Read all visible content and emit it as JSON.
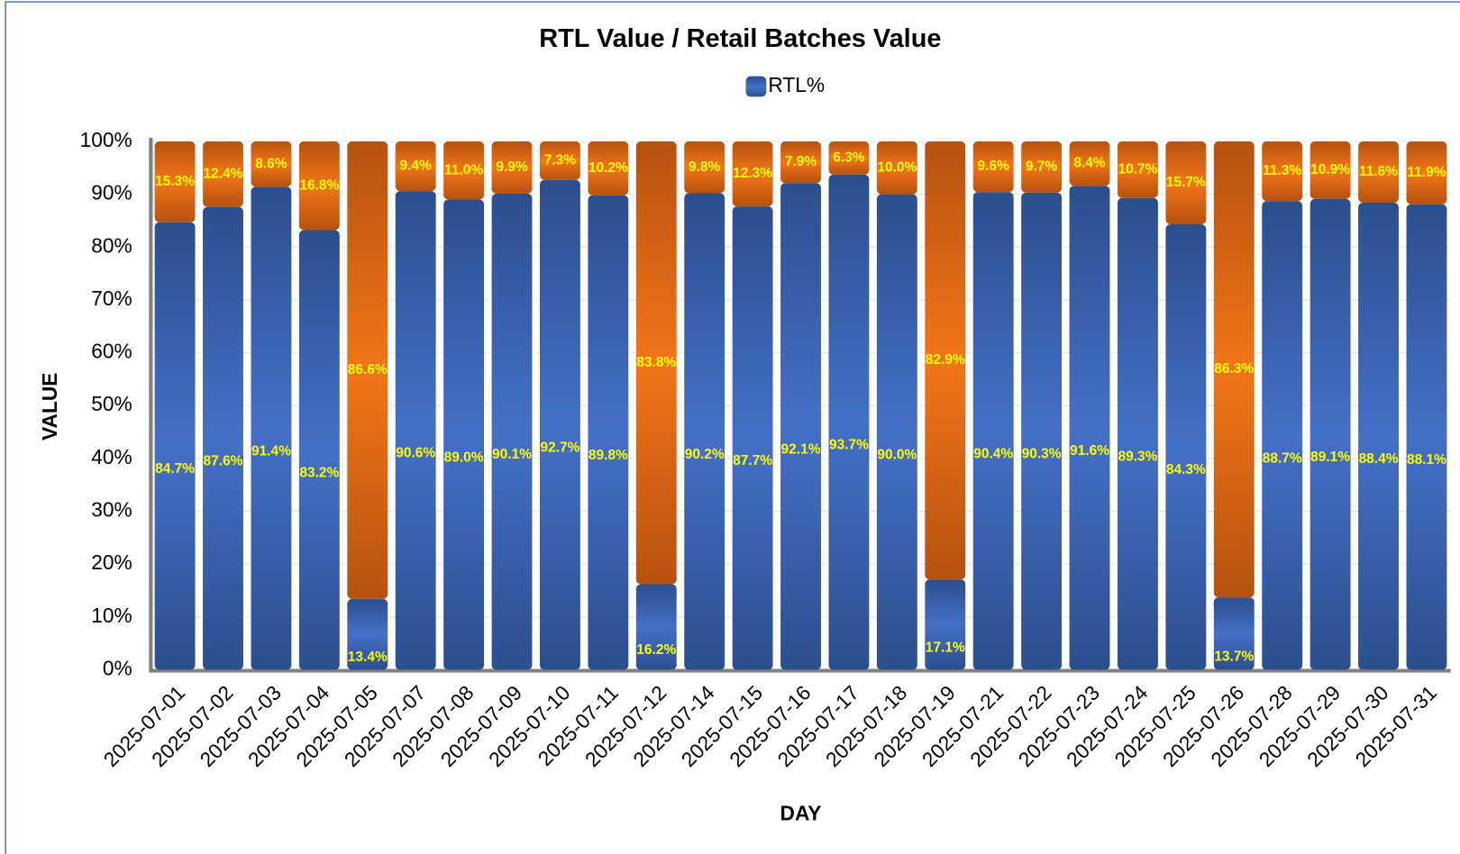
{
  "chart_data": {
    "type": "stacked_bar",
    "title": "RTL Value / Retail Batches Value",
    "x_label": "DAY",
    "y_label": "VALUE",
    "categories": [
      "2025-07-01",
      "2025-07-02",
      "2025-07-03",
      "2025-07-04",
      "2025-07-05",
      "2025-07-07",
      "2025-07-08",
      "2025-07-09",
      "2025-07-10",
      "2025-07-11",
      "2025-07-12",
      "2025-07-14",
      "2025-07-15",
      "2025-07-16",
      "2025-07-17",
      "2025-07-18",
      "2025-07-19",
      "2025-07-21",
      "2025-07-22",
      "2025-07-23",
      "2025-07-24",
      "2025-07-25",
      "2025-07-26",
      "2025-07-28",
      "2025-07-29",
      "2025-07-30",
      "2025-07-31"
    ],
    "series": [
      {
        "name": "RTL%",
        "color": "#3a64b4",
        "values": [
          84.7,
          87.6,
          91.4,
          83.2,
          13.4,
          90.6,
          89.0,
          90.1,
          92.7,
          89.8,
          16.2,
          90.2,
          87.7,
          92.1,
          93.7,
          90.0,
          17.1,
          90.4,
          90.3,
          91.6,
          89.3,
          84.3,
          13.7,
          88.7,
          89.1,
          88.4,
          88.1
        ],
        "value_labels": [
          "84.7%",
          "87.6%",
          "91.4%",
          "83.2%",
          "13.4%",
          "90.6%",
          "89.0%",
          "90.1%",
          "92.7%",
          "89.8%",
          "16.2%",
          "90.2%",
          "87.7%",
          "92.1%",
          "93.7%",
          "90.0%",
          "17.1%",
          "90.4%",
          "90.3%",
          "91.6%",
          "89.3%",
          "84.3%",
          "13.7%",
          "88.7%",
          "89.1%",
          "88.4%",
          "88.1%"
        ]
      },
      {
        "color": "#e96c16",
        "values": [
          15.3,
          12.4,
          8.6,
          16.8,
          86.6,
          9.4,
          11.0,
          9.9,
          7.3,
          10.2,
          83.8,
          9.8,
          12.3,
          7.9,
          6.3,
          10.0,
          82.9,
          9.6,
          9.7,
          8.4,
          10.7,
          15.7,
          86.3,
          11.3,
          10.9,
          11.6,
          11.9
        ],
        "value_labels": [
          "15.3%",
          "12.4%",
          "8.6%",
          "16.8%",
          "86.6%",
          "9.4%",
          "11.0%",
          "9.9%",
          "7.3%",
          "10.2%",
          "83.8%",
          "9.8%",
          "12.3%",
          "7.9%",
          "6.3%",
          "10.0%",
          "82.9%",
          "9.6%",
          "9.7%",
          "8.4%",
          "10.7%",
          "15.7%",
          "86.3%",
          "11.3%",
          "10.9%",
          "11.6%",
          "11.9%"
        ]
      }
    ],
    "ylim": [
      0,
      100
    ],
    "yticks": [
      {
        "value": 0,
        "label": "0%"
      },
      {
        "value": 10,
        "label": "10%"
      },
      {
        "value": 20,
        "label": "20%"
      },
      {
        "value": 30,
        "label": "30%"
      },
      {
        "value": 40,
        "label": "40%"
      },
      {
        "value": 50,
        "label": "50%"
      },
      {
        "value": 60,
        "label": "60%"
      },
      {
        "value": 70,
        "label": "70%"
      },
      {
        "value": 80,
        "label": "80%"
      },
      {
        "value": 90,
        "label": "90%"
      },
      {
        "value": 100,
        "label": "100%"
      }
    ],
    "grid": true
  }
}
